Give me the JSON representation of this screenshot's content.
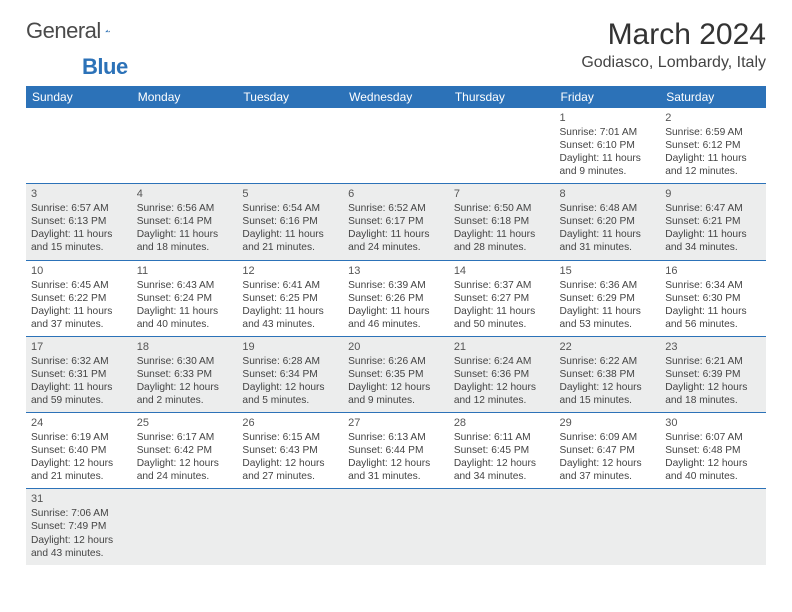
{
  "logo": {
    "text1": "General",
    "text2": "Blue"
  },
  "title": "March 2024",
  "location": "Godiasco, Lombardy, Italy",
  "weekdays": [
    "Sunday",
    "Monday",
    "Tuesday",
    "Wednesday",
    "Thursday",
    "Friday",
    "Saturday"
  ],
  "colors": {
    "header_bg": "#2c72b8",
    "row_alt": "#eceded",
    "rule": "#2c72b8"
  },
  "weeks": [
    [
      null,
      null,
      null,
      null,
      null,
      {
        "n": "1",
        "sr": "Sunrise: 7:01 AM",
        "ss": "Sunset: 6:10 PM",
        "d1": "Daylight: 11 hours",
        "d2": "and 9 minutes."
      },
      {
        "n": "2",
        "sr": "Sunrise: 6:59 AM",
        "ss": "Sunset: 6:12 PM",
        "d1": "Daylight: 11 hours",
        "d2": "and 12 minutes."
      }
    ],
    [
      {
        "n": "3",
        "sr": "Sunrise: 6:57 AM",
        "ss": "Sunset: 6:13 PM",
        "d1": "Daylight: 11 hours",
        "d2": "and 15 minutes."
      },
      {
        "n": "4",
        "sr": "Sunrise: 6:56 AM",
        "ss": "Sunset: 6:14 PM",
        "d1": "Daylight: 11 hours",
        "d2": "and 18 minutes."
      },
      {
        "n": "5",
        "sr": "Sunrise: 6:54 AM",
        "ss": "Sunset: 6:16 PM",
        "d1": "Daylight: 11 hours",
        "d2": "and 21 minutes."
      },
      {
        "n": "6",
        "sr": "Sunrise: 6:52 AM",
        "ss": "Sunset: 6:17 PM",
        "d1": "Daylight: 11 hours",
        "d2": "and 24 minutes."
      },
      {
        "n": "7",
        "sr": "Sunrise: 6:50 AM",
        "ss": "Sunset: 6:18 PM",
        "d1": "Daylight: 11 hours",
        "d2": "and 28 minutes."
      },
      {
        "n": "8",
        "sr": "Sunrise: 6:48 AM",
        "ss": "Sunset: 6:20 PM",
        "d1": "Daylight: 11 hours",
        "d2": "and 31 minutes."
      },
      {
        "n": "9",
        "sr": "Sunrise: 6:47 AM",
        "ss": "Sunset: 6:21 PM",
        "d1": "Daylight: 11 hours",
        "d2": "and 34 minutes."
      }
    ],
    [
      {
        "n": "10",
        "sr": "Sunrise: 6:45 AM",
        "ss": "Sunset: 6:22 PM",
        "d1": "Daylight: 11 hours",
        "d2": "and 37 minutes."
      },
      {
        "n": "11",
        "sr": "Sunrise: 6:43 AM",
        "ss": "Sunset: 6:24 PM",
        "d1": "Daylight: 11 hours",
        "d2": "and 40 minutes."
      },
      {
        "n": "12",
        "sr": "Sunrise: 6:41 AM",
        "ss": "Sunset: 6:25 PM",
        "d1": "Daylight: 11 hours",
        "d2": "and 43 minutes."
      },
      {
        "n": "13",
        "sr": "Sunrise: 6:39 AM",
        "ss": "Sunset: 6:26 PM",
        "d1": "Daylight: 11 hours",
        "d2": "and 46 minutes."
      },
      {
        "n": "14",
        "sr": "Sunrise: 6:37 AM",
        "ss": "Sunset: 6:27 PM",
        "d1": "Daylight: 11 hours",
        "d2": "and 50 minutes."
      },
      {
        "n": "15",
        "sr": "Sunrise: 6:36 AM",
        "ss": "Sunset: 6:29 PM",
        "d1": "Daylight: 11 hours",
        "d2": "and 53 minutes."
      },
      {
        "n": "16",
        "sr": "Sunrise: 6:34 AM",
        "ss": "Sunset: 6:30 PM",
        "d1": "Daylight: 11 hours",
        "d2": "and 56 minutes."
      }
    ],
    [
      {
        "n": "17",
        "sr": "Sunrise: 6:32 AM",
        "ss": "Sunset: 6:31 PM",
        "d1": "Daylight: 11 hours",
        "d2": "and 59 minutes."
      },
      {
        "n": "18",
        "sr": "Sunrise: 6:30 AM",
        "ss": "Sunset: 6:33 PM",
        "d1": "Daylight: 12 hours",
        "d2": "and 2 minutes."
      },
      {
        "n": "19",
        "sr": "Sunrise: 6:28 AM",
        "ss": "Sunset: 6:34 PM",
        "d1": "Daylight: 12 hours",
        "d2": "and 5 minutes."
      },
      {
        "n": "20",
        "sr": "Sunrise: 6:26 AM",
        "ss": "Sunset: 6:35 PM",
        "d1": "Daylight: 12 hours",
        "d2": "and 9 minutes."
      },
      {
        "n": "21",
        "sr": "Sunrise: 6:24 AM",
        "ss": "Sunset: 6:36 PM",
        "d1": "Daylight: 12 hours",
        "d2": "and 12 minutes."
      },
      {
        "n": "22",
        "sr": "Sunrise: 6:22 AM",
        "ss": "Sunset: 6:38 PM",
        "d1": "Daylight: 12 hours",
        "d2": "and 15 minutes."
      },
      {
        "n": "23",
        "sr": "Sunrise: 6:21 AM",
        "ss": "Sunset: 6:39 PM",
        "d1": "Daylight: 12 hours",
        "d2": "and 18 minutes."
      }
    ],
    [
      {
        "n": "24",
        "sr": "Sunrise: 6:19 AM",
        "ss": "Sunset: 6:40 PM",
        "d1": "Daylight: 12 hours",
        "d2": "and 21 minutes."
      },
      {
        "n": "25",
        "sr": "Sunrise: 6:17 AM",
        "ss": "Sunset: 6:42 PM",
        "d1": "Daylight: 12 hours",
        "d2": "and 24 minutes."
      },
      {
        "n": "26",
        "sr": "Sunrise: 6:15 AM",
        "ss": "Sunset: 6:43 PM",
        "d1": "Daylight: 12 hours",
        "d2": "and 27 minutes."
      },
      {
        "n": "27",
        "sr": "Sunrise: 6:13 AM",
        "ss": "Sunset: 6:44 PM",
        "d1": "Daylight: 12 hours",
        "d2": "and 31 minutes."
      },
      {
        "n": "28",
        "sr": "Sunrise: 6:11 AM",
        "ss": "Sunset: 6:45 PM",
        "d1": "Daylight: 12 hours",
        "d2": "and 34 minutes."
      },
      {
        "n": "29",
        "sr": "Sunrise: 6:09 AM",
        "ss": "Sunset: 6:47 PM",
        "d1": "Daylight: 12 hours",
        "d2": "and 37 minutes."
      },
      {
        "n": "30",
        "sr": "Sunrise: 6:07 AM",
        "ss": "Sunset: 6:48 PM",
        "d1": "Daylight: 12 hours",
        "d2": "and 40 minutes."
      }
    ],
    [
      {
        "n": "31",
        "sr": "Sunrise: 7:06 AM",
        "ss": "Sunset: 7:49 PM",
        "d1": "Daylight: 12 hours",
        "d2": "and 43 minutes."
      },
      null,
      null,
      null,
      null,
      null,
      null
    ]
  ]
}
